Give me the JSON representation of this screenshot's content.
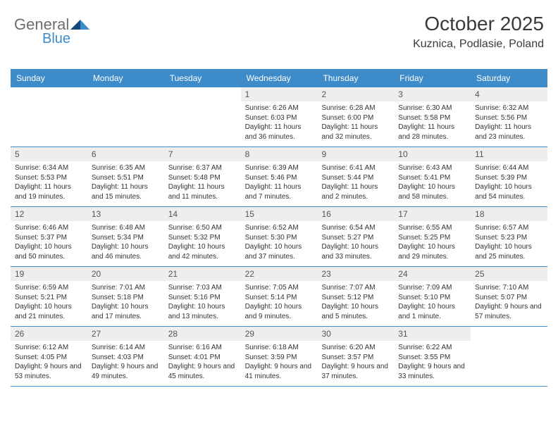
{
  "logo": {
    "text1": "General",
    "text2": "Blue",
    "color_grey": "#6d6d6d",
    "color_blue": "#3d8bc9",
    "triangle_dark": "#14477a",
    "triangle_light": "#3d8bc9"
  },
  "header": {
    "month_title": "October 2025",
    "location": "Kuznica, Podlasie, Poland"
  },
  "colors": {
    "header_bg": "#3d8bc9",
    "header_text": "#ffffff",
    "daynum_bg": "#eeeeee",
    "border": "#3d8bc9",
    "text": "#333333"
  },
  "day_names": [
    "Sunday",
    "Monday",
    "Tuesday",
    "Wednesday",
    "Thursday",
    "Friday",
    "Saturday"
  ],
  "weeks": [
    [
      null,
      null,
      null,
      {
        "num": "1",
        "sunrise": "6:26 AM",
        "sunset": "6:03 PM",
        "daylight": "11 hours and 36 minutes."
      },
      {
        "num": "2",
        "sunrise": "6:28 AM",
        "sunset": "6:00 PM",
        "daylight": "11 hours and 32 minutes."
      },
      {
        "num": "3",
        "sunrise": "6:30 AM",
        "sunset": "5:58 PM",
        "daylight": "11 hours and 28 minutes."
      },
      {
        "num": "4",
        "sunrise": "6:32 AM",
        "sunset": "5:56 PM",
        "daylight": "11 hours and 23 minutes."
      }
    ],
    [
      {
        "num": "5",
        "sunrise": "6:34 AM",
        "sunset": "5:53 PM",
        "daylight": "11 hours and 19 minutes."
      },
      {
        "num": "6",
        "sunrise": "6:35 AM",
        "sunset": "5:51 PM",
        "daylight": "11 hours and 15 minutes."
      },
      {
        "num": "7",
        "sunrise": "6:37 AM",
        "sunset": "5:48 PM",
        "daylight": "11 hours and 11 minutes."
      },
      {
        "num": "8",
        "sunrise": "6:39 AM",
        "sunset": "5:46 PM",
        "daylight": "11 hours and 7 minutes."
      },
      {
        "num": "9",
        "sunrise": "6:41 AM",
        "sunset": "5:44 PM",
        "daylight": "11 hours and 2 minutes."
      },
      {
        "num": "10",
        "sunrise": "6:43 AM",
        "sunset": "5:41 PM",
        "daylight": "10 hours and 58 minutes."
      },
      {
        "num": "11",
        "sunrise": "6:44 AM",
        "sunset": "5:39 PM",
        "daylight": "10 hours and 54 minutes."
      }
    ],
    [
      {
        "num": "12",
        "sunrise": "6:46 AM",
        "sunset": "5:37 PM",
        "daylight": "10 hours and 50 minutes."
      },
      {
        "num": "13",
        "sunrise": "6:48 AM",
        "sunset": "5:34 PM",
        "daylight": "10 hours and 46 minutes."
      },
      {
        "num": "14",
        "sunrise": "6:50 AM",
        "sunset": "5:32 PM",
        "daylight": "10 hours and 42 minutes."
      },
      {
        "num": "15",
        "sunrise": "6:52 AM",
        "sunset": "5:30 PM",
        "daylight": "10 hours and 37 minutes."
      },
      {
        "num": "16",
        "sunrise": "6:54 AM",
        "sunset": "5:27 PM",
        "daylight": "10 hours and 33 minutes."
      },
      {
        "num": "17",
        "sunrise": "6:55 AM",
        "sunset": "5:25 PM",
        "daylight": "10 hours and 29 minutes."
      },
      {
        "num": "18",
        "sunrise": "6:57 AM",
        "sunset": "5:23 PM",
        "daylight": "10 hours and 25 minutes."
      }
    ],
    [
      {
        "num": "19",
        "sunrise": "6:59 AM",
        "sunset": "5:21 PM",
        "daylight": "10 hours and 21 minutes."
      },
      {
        "num": "20",
        "sunrise": "7:01 AM",
        "sunset": "5:18 PM",
        "daylight": "10 hours and 17 minutes."
      },
      {
        "num": "21",
        "sunrise": "7:03 AM",
        "sunset": "5:16 PM",
        "daylight": "10 hours and 13 minutes."
      },
      {
        "num": "22",
        "sunrise": "7:05 AM",
        "sunset": "5:14 PM",
        "daylight": "10 hours and 9 minutes."
      },
      {
        "num": "23",
        "sunrise": "7:07 AM",
        "sunset": "5:12 PM",
        "daylight": "10 hours and 5 minutes."
      },
      {
        "num": "24",
        "sunrise": "7:09 AM",
        "sunset": "5:10 PM",
        "daylight": "10 hours and 1 minute."
      },
      {
        "num": "25",
        "sunrise": "7:10 AM",
        "sunset": "5:07 PM",
        "daylight": "9 hours and 57 minutes."
      }
    ],
    [
      {
        "num": "26",
        "sunrise": "6:12 AM",
        "sunset": "4:05 PM",
        "daylight": "9 hours and 53 minutes."
      },
      {
        "num": "27",
        "sunrise": "6:14 AM",
        "sunset": "4:03 PM",
        "daylight": "9 hours and 49 minutes."
      },
      {
        "num": "28",
        "sunrise": "6:16 AM",
        "sunset": "4:01 PM",
        "daylight": "9 hours and 45 minutes."
      },
      {
        "num": "29",
        "sunrise": "6:18 AM",
        "sunset": "3:59 PM",
        "daylight": "9 hours and 41 minutes."
      },
      {
        "num": "30",
        "sunrise": "6:20 AM",
        "sunset": "3:57 PM",
        "daylight": "9 hours and 37 minutes."
      },
      {
        "num": "31",
        "sunrise": "6:22 AM",
        "sunset": "3:55 PM",
        "daylight": "9 hours and 33 minutes."
      },
      null
    ]
  ],
  "labels": {
    "sunrise": "Sunrise:",
    "sunset": "Sunset:",
    "daylight": "Daylight:"
  }
}
